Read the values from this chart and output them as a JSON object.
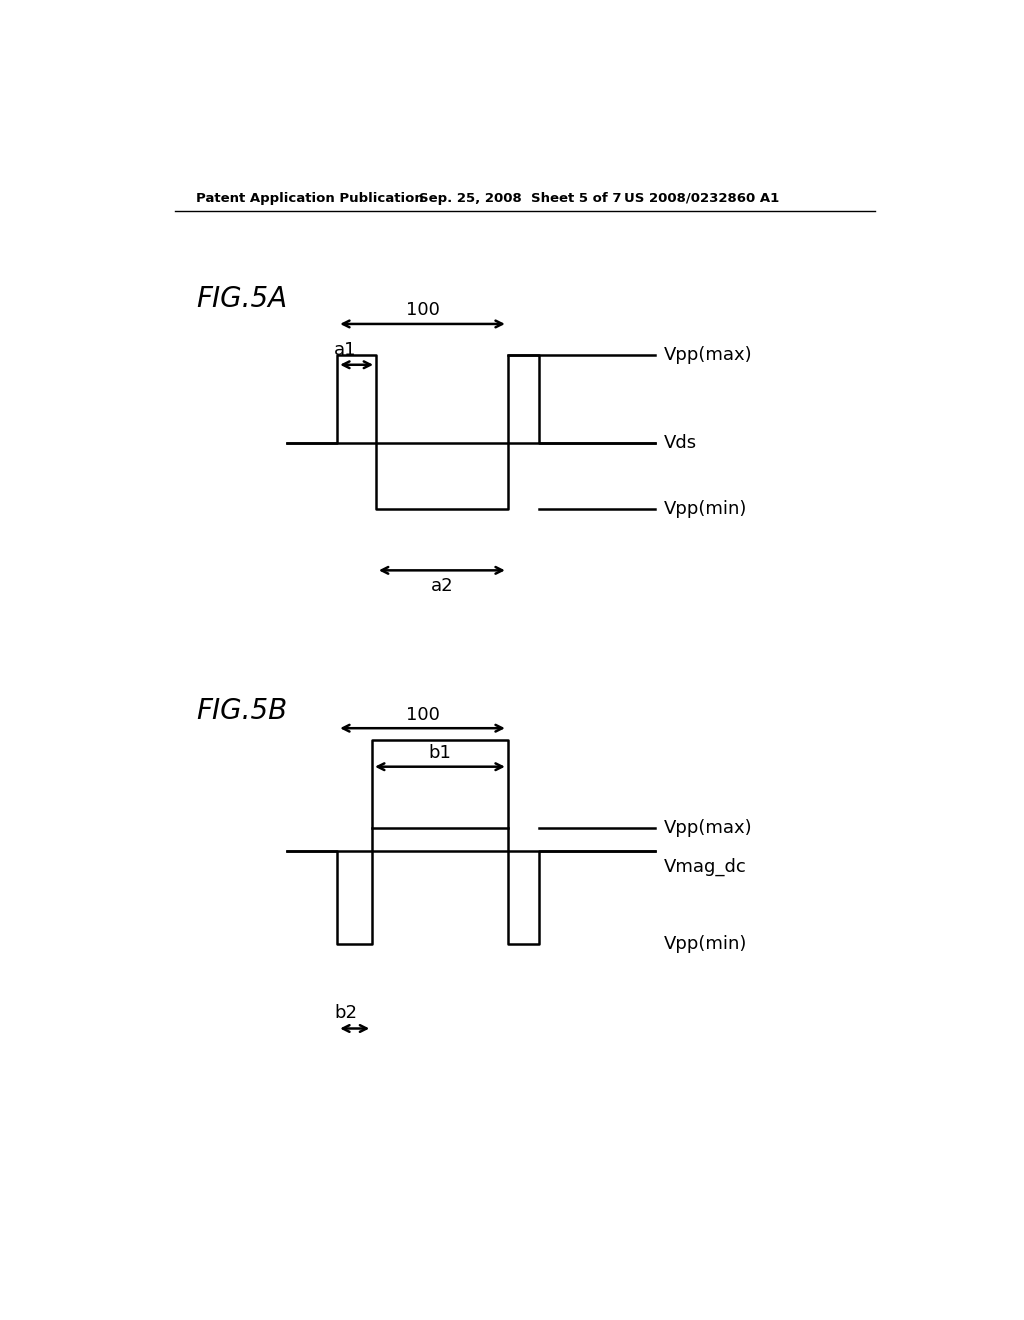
{
  "bg_color": "#ffffff",
  "header_left": "Patent Application Publication",
  "header_mid": "Sep. 25, 2008  Sheet 5 of 7",
  "header_right": "US 2008/0232860 A1",
  "fig5a_label": "FIG.5A",
  "fig5b_label": "FIG.5B",
  "fig5a": {
    "label_100": "100",
    "label_a1": "a1",
    "label_a2": "a2",
    "label_vpp_max": "Vpp(max)",
    "label_vds": "Vds",
    "label_vpp_min": "Vpp(min)"
  },
  "fig5b": {
    "label_100": "100",
    "label_b1": "b1",
    "label_b2": "b2",
    "label_vpp_max": "Vpp(max)",
    "label_vmag_dc": "Vmag_dc",
    "label_vpp_min": "Vpp(min)"
  }
}
